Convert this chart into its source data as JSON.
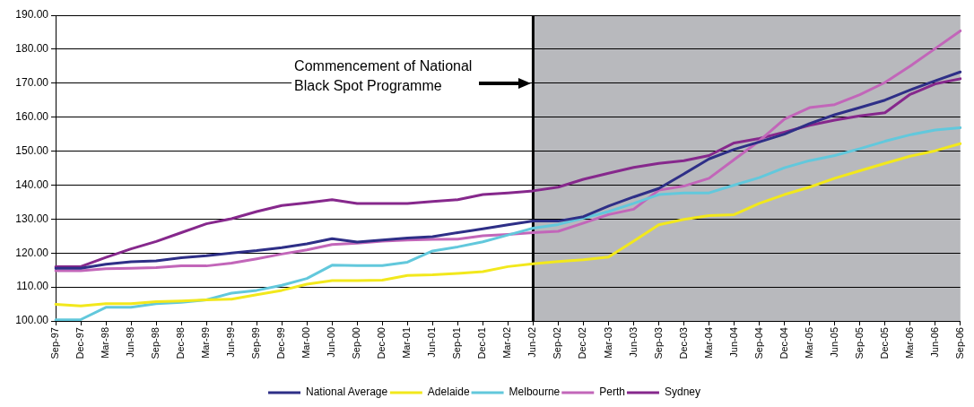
{
  "chart_data": {
    "type": "line",
    "categories": [
      "Sep-97",
      "Dec-97",
      "Mar-98",
      "Jun-98",
      "Sep-98",
      "Dec-98",
      "Mar-99",
      "Jun-99",
      "Sep-99",
      "Dec-99",
      "Mar-00",
      "Jun-00",
      "Sep-00",
      "Dec-00",
      "Mar-01",
      "Jun-01",
      "Sep-01",
      "Dec-01",
      "Mar-02",
      "Jun-02",
      "Sep-02",
      "Dec-02",
      "Mar-03",
      "Jun-03",
      "Sep-03",
      "Dec-03",
      "Mar-04",
      "Jun-04",
      "Sep-04",
      "Dec-04",
      "Mar-05",
      "Jun-05",
      "Sep-05",
      "Dec-05",
      "Mar-06",
      "Jun-06",
      "Sep-06"
    ],
    "series": [
      {
        "name": "National Average",
        "color": "#2e2f87",
        "values": [
          115.5,
          115.5,
          116.7,
          117.4,
          117.7,
          118.6,
          119.2,
          120.0,
          120.7,
          121.6,
          122.7,
          124.2,
          123.2,
          123.8,
          124.4,
          124.8,
          126.0,
          127.1,
          128.3,
          129.4,
          129.4,
          130.7,
          133.8,
          136.5,
          139.0,
          143.3,
          147.7,
          150.5,
          152.7,
          155.0,
          158.1,
          160.7,
          162.8,
          165.0,
          168.0,
          170.7,
          173.3
        ]
      },
      {
        "name": "Adelaide",
        "color": "#f2e81c",
        "values": [
          104.9,
          104.4,
          105.1,
          105.1,
          105.7,
          105.9,
          106.2,
          106.4,
          107.7,
          109.0,
          110.8,
          111.9,
          111.9,
          112.0,
          113.4,
          113.6,
          114.0,
          114.5,
          116.0,
          116.8,
          117.5,
          118.0,
          118.8,
          123.5,
          128.3,
          129.9,
          131.0,
          131.3,
          134.6,
          137.2,
          139.4,
          142.0,
          144.2,
          146.4,
          148.5,
          150.1,
          152.2
        ]
      },
      {
        "name": "Melbourne",
        "color": "#62c8dc",
        "values": [
          100.3,
          100.4,
          104.0,
          104.0,
          105.1,
          105.5,
          106.2,
          108.2,
          109.0,
          110.5,
          112.5,
          116.4,
          116.3,
          116.3,
          117.3,
          120.6,
          121.8,
          123.3,
          125.3,
          127.3,
          128.4,
          130.3,
          132.2,
          134.6,
          137.2,
          137.7,
          137.7,
          140.0,
          142.2,
          145.1,
          147.2,
          148.7,
          150.7,
          152.9,
          154.8,
          156.2,
          156.9
        ]
      },
      {
        "name": "Perth",
        "color": "#c266b9",
        "values": [
          114.8,
          114.8,
          115.4,
          115.5,
          115.7,
          116.2,
          116.2,
          117.0,
          118.3,
          119.7,
          120.9,
          122.5,
          122.9,
          123.5,
          123.8,
          124.0,
          124.1,
          125.1,
          125.5,
          126.0,
          126.4,
          128.8,
          131.3,
          132.9,
          138.5,
          139.7,
          142.0,
          147.5,
          153.0,
          159.4,
          162.8,
          163.7,
          166.6,
          170.2,
          175.0,
          180.2,
          185.4
        ]
      },
      {
        "name": "Sydney",
        "color": "#86288c",
        "values": [
          116.0,
          116.0,
          118.7,
          121.2,
          123.4,
          126.0,
          128.6,
          130.1,
          132.2,
          134.0,
          134.8,
          135.7,
          134.6,
          134.6,
          134.6,
          135.2,
          135.7,
          137.2,
          137.7,
          138.3,
          139.4,
          141.7,
          143.5,
          145.2,
          146.4,
          147.2,
          148.7,
          152.4,
          153.7,
          155.6,
          157.6,
          159.1,
          160.4,
          161.3,
          166.7,
          169.8,
          171.3
        ]
      }
    ],
    "ylim": [
      100,
      190
    ],
    "yticks": [
      {
        "value": 100,
        "label": "100.00"
      },
      {
        "value": 110,
        "label": "110.00"
      },
      {
        "value": 120,
        "label": "120.00"
      },
      {
        "value": 130,
        "label": "130.00"
      },
      {
        "value": 140,
        "label": "140.00"
      },
      {
        "value": 150,
        "label": "150.00"
      },
      {
        "value": 160,
        "label": "160.00"
      },
      {
        "value": 170,
        "label": "170.00"
      },
      {
        "value": 180,
        "label": "180.00"
      },
      {
        "value": 190,
        "label": "190.00"
      }
    ],
    "bands": [
      {
        "axis": "x",
        "from": "Jun-02",
        "to": "Sep-06",
        "color": "#b8b9bd"
      }
    ],
    "ref_lines": [
      {
        "axis": "x",
        "value": "Jun-02",
        "color": "#000000",
        "line_style": "solid"
      }
    ],
    "annotations": [
      "Commencement of National Black Spot Programme"
    ],
    "grid": "y",
    "legend": "bottom",
    "marker": "none",
    "line_style": "solid"
  }
}
